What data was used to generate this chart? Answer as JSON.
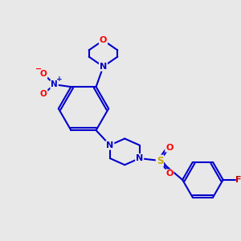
{
  "background_color": "#e8e8e8",
  "bond_color": "#0000cc",
  "atom_colors": {
    "O": "#ff0000",
    "N": "#0000cc",
    "S": "#ccaa00",
    "F": "#cc0000",
    "NO2_N": "#0000cc",
    "NO2_O": "#ff0000"
  },
  "line_width": 1.5,
  "figsize": [
    3.0,
    3.0
  ],
  "dpi": 100
}
